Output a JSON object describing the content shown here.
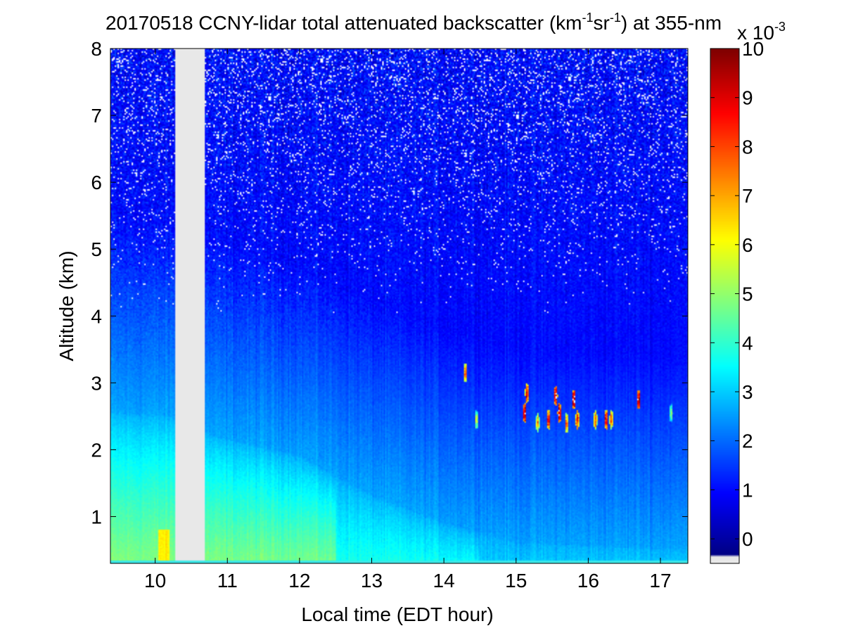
{
  "chart_data": {
    "type": "heatmap",
    "title": "20170518 CCNY-lidar total attenuated backscatter (km",
    "title_sup1": "-1",
    "title_mid": "sr",
    "title_sup2": "-1",
    "title_end": ") at 355-nm",
    "xlabel": "Local time (EDT hour)",
    "ylabel": "Altitude (km)",
    "xlim": [
      9.38,
      17.38
    ],
    "ylim": [
      0.3,
      8
    ],
    "x_ticks": [
      10,
      11,
      12,
      13,
      14,
      15,
      16,
      17
    ],
    "y_ticks": [
      1,
      2,
      3,
      4,
      5,
      6,
      7,
      8
    ],
    "colorbar": {
      "min": -0.5,
      "max": 10,
      "ticks": [
        0,
        1,
        2,
        3,
        4,
        5,
        6,
        7,
        8,
        9,
        10
      ],
      "multiplier_base": "x 10",
      "multiplier_exp": "-3",
      "colormap": "jet",
      "nodata_color": "#e8e8e8"
    },
    "data_gaps": [
      {
        "x_start": 10.28,
        "x_end": 10.68
      }
    ],
    "layers": {
      "boundary_layer_top_km": [
        {
          "x": 9.4,
          "y": 2.55
        },
        {
          "x": 10.2,
          "y": 2.5
        },
        {
          "x": 10.8,
          "y": 2.2
        },
        {
          "x": 12.0,
          "y": 1.9
        },
        {
          "x": 13.0,
          "y": 1.3
        },
        {
          "x": 14.0,
          "y": 0.9
        },
        {
          "x": 15.0,
          "y": 0.6
        },
        {
          "x": 17.35,
          "y": 0.5
        }
      ],
      "cloud_features": [
        {
          "x": 14.3,
          "y": 3.15,
          "value": 8
        },
        {
          "x": 14.45,
          "y": 2.45,
          "value": 6
        },
        {
          "x": 15.12,
          "y": 2.55,
          "value": 10
        },
        {
          "x": 15.15,
          "y": 2.85,
          "value": 9
        },
        {
          "x": 15.3,
          "y": 2.4,
          "value": 7
        },
        {
          "x": 15.45,
          "y": 2.45,
          "value": 9
        },
        {
          "x": 15.55,
          "y": 2.8,
          "value": 10
        },
        {
          "x": 15.6,
          "y": 2.55,
          "value": 10
        },
        {
          "x": 15.7,
          "y": 2.4,
          "value": 8
        },
        {
          "x": 15.8,
          "y": 2.75,
          "value": 10
        },
        {
          "x": 15.85,
          "y": 2.45,
          "value": 9
        },
        {
          "x": 16.1,
          "y": 2.45,
          "value": 8
        },
        {
          "x": 16.25,
          "y": 2.45,
          "value": 9
        },
        {
          "x": 16.32,
          "y": 2.45,
          "value": 8
        },
        {
          "x": 16.7,
          "y": 2.75,
          "value": 10
        },
        {
          "x": 17.15,
          "y": 2.55,
          "value": 5
        }
      ]
    }
  }
}
